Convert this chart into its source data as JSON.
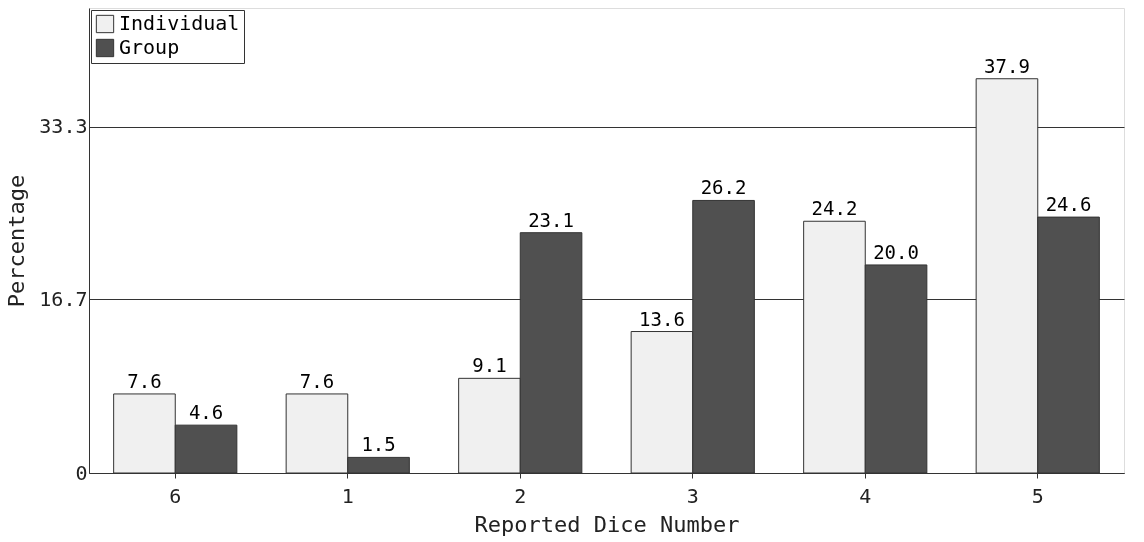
{
  "chart_data": {
    "type": "bar",
    "xlabel": "Reported Dice Number",
    "ylabel": "Percentage",
    "categories": [
      "6",
      "1",
      "2",
      "3",
      "4",
      "5"
    ],
    "series": [
      {
        "name": "Individual",
        "color": "#f0f0f0",
        "values": [
          7.6,
          7.6,
          9.1,
          13.6,
          24.2,
          37.9
        ],
        "value_labels": [
          "7.6",
          "7.6",
          "9.1",
          "13.6",
          "24.2",
          "37.9"
        ]
      },
      {
        "name": "Group",
        "color": "#505050",
        "values": [
          4.6,
          1.5,
          23.1,
          26.2,
          20.0,
          24.6
        ],
        "value_labels": [
          "4.6",
          "1.5",
          "23.1",
          "26.2",
          "20.0",
          "24.6"
        ]
      }
    ],
    "ylim": [
      0,
      44.7
    ],
    "yticks": [
      0,
      16.7,
      33.3
    ],
    "grid": "y",
    "legend": "top left"
  }
}
